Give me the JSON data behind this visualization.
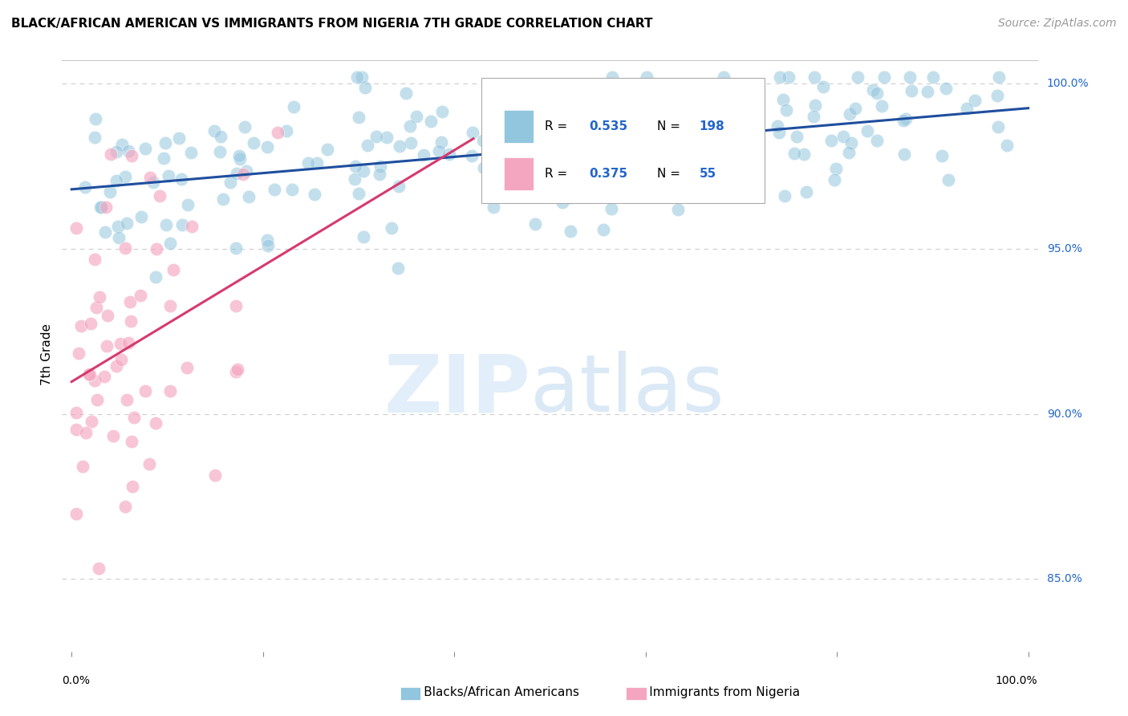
{
  "title": "BLACK/AFRICAN AMERICAN VS IMMIGRANTS FROM NIGERIA 7TH GRADE CORRELATION CHART",
  "source": "Source: ZipAtlas.com",
  "ylabel": "7th Grade",
  "xlim": [
    -0.01,
    1.01
  ],
  "ylim": [
    0.828,
    1.008
  ],
  "right_yticks": [
    0.85,
    0.9,
    0.95,
    1.0
  ],
  "right_yticklabels": [
    "85.0%",
    "90.0%",
    "95.0%",
    "100.0%"
  ],
  "blue_R": 0.535,
  "blue_N": 198,
  "pink_R": 0.375,
  "pink_N": 55,
  "blue_color": "#92c5de",
  "pink_color": "#f4a6c0",
  "trend_blue": "#1f4e9e",
  "trend_pink": "#d63a6e",
  "legend_R_color": "#2266cc",
  "grid_color": "#cccccc",
  "background_color": "#ffffff",
  "title_fontsize": 11,
  "source_fontsize": 10,
  "legend_fontsize": 12
}
